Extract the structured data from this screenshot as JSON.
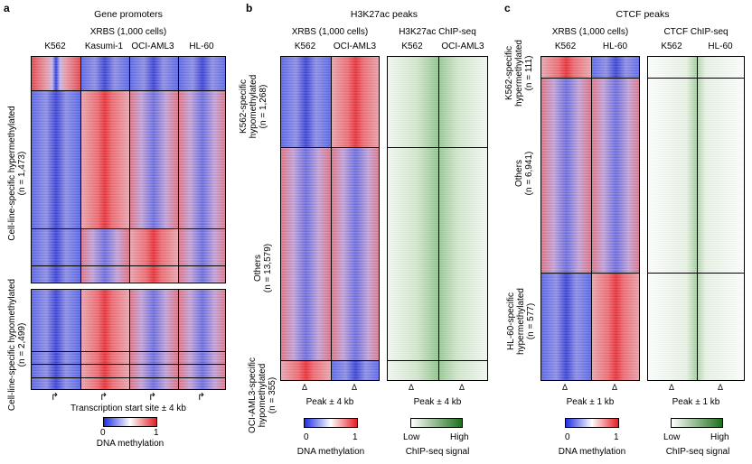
{
  "panel_a": {
    "letter": "a",
    "title": "Gene promoters",
    "subtitle": "XRBS (1,000 cells)",
    "columns": [
      "K562",
      "Kasumi-1",
      "OCI-AML3",
      "HL-60"
    ],
    "group_top": "Cell-line-specific hypermethylated",
    "group_top_n": "(n = 1,473)",
    "group_bottom": "Cell-line-specific hypomethylated",
    "group_bottom_n": "(n = 2,499)",
    "xlabel": "Transcription start site ± 4 kb",
    "arrow_glyph": "↱",
    "cbar_min": "0",
    "cbar_max": "1",
    "cbar_label": "DNA methylation"
  },
  "panel_b": {
    "letter": "b",
    "title": "H3K27ac peaks",
    "sub_xrbs": "XRBS (1,000 cells)",
    "sub_chip": "H3K27ac ChIP-seq",
    "xrbs_columns": [
      "K562",
      "OCI-AML3"
    ],
    "chip_columns": [
      "K562",
      "OCI-AML3"
    ],
    "group1": "K562-specific hypomethylated",
    "group1_n": "(n = 1,268)",
    "group2": "Others",
    "group2_n": "(n = 13,579)",
    "group3": "OCI-AML3-specific hypomethylated",
    "group3_n": "(n = 355)",
    "xlabel_left": "Peak ± 4 kb",
    "xlabel_right": "Peak ± 4 kb",
    "tick_glyph": "Δ",
    "cbar_min": "0",
    "cbar_max": "1",
    "cbar_label": "DNA methylation",
    "cbar2_min": "Low",
    "cbar2_max": "High",
    "cbar2_label": "ChIP-seq signal"
  },
  "panel_c": {
    "letter": "c",
    "title": "CTCF peaks",
    "sub_xrbs": "XRBS (1,000 cells)",
    "sub_chip": "CTCF ChIP-seq",
    "xrbs_columns": [
      "K562",
      "HL-60"
    ],
    "chip_columns": [
      "K562",
      "HL-60"
    ],
    "group1": "K562-specific hypermethylated",
    "group1_n": "(n = 111)",
    "group2": "Others",
    "group2_n": "(n = 6,941)",
    "group3": "HL-60-specific hypermethylated",
    "group3_n": "(n = 577)",
    "xlabel_left": "Peak ± 1 kb",
    "xlabel_right": "Peak ± 1 kb",
    "tick_glyph": "Δ",
    "cbar_min": "0",
    "cbar_max": "1",
    "cbar_label": "DNA methylation",
    "cbar2_min": "Low",
    "cbar2_max": "High",
    "cbar2_label": "ChIP-seq signal"
  }
}
